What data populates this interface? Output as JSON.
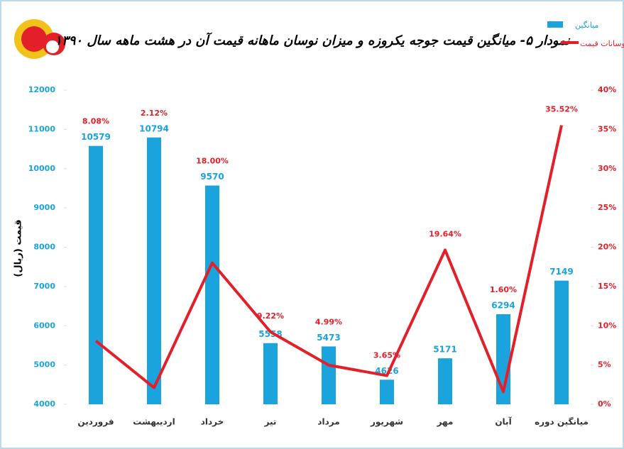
{
  "chart_data": {
    "type": "bar-line",
    "title": "نمودار ۵- میانگین قیمت جوجه یکروزه و میزان نوسان ماهانه قیمت آن در هشت ماهه سال ۱۳۹۰",
    "ylabel": "قیمت (ریال)",
    "categories": [
      "فروردین",
      "اردیبهشت",
      "خرداد",
      "تیر",
      "مرداد",
      "شهریور",
      "مهر",
      "آبان",
      "میانگین دوره"
    ],
    "series": [
      {
        "name": "میانگین",
        "type": "bar",
        "color": "#1aa3dc",
        "values": [
          10579,
          10794,
          9570,
          5558,
          5473,
          4626,
          5171,
          6294,
          7149
        ]
      },
      {
        "name": "نوسانات قیمت",
        "type": "line",
        "axis": "y2",
        "color": "#e3202a",
        "values": [
          8.08,
          2.12,
          18.0,
          9.22,
          4.99,
          3.65,
          19.64,
          1.6,
          35.52
        ],
        "value_labels": [
          "8.08%",
          "2.12%",
          "18.00%",
          "9.22%",
          "4.99%",
          "3.65%",
          "19.64%",
          "1.60%",
          "35.52%"
        ]
      }
    ],
    "ylim": [
      4000,
      12000
    ],
    "yticks": [
      4000,
      5000,
      6000,
      7000,
      8000,
      9000,
      10000,
      11000,
      12000
    ],
    "y2lim": [
      0,
      40
    ],
    "y2ticks": [
      {
        "value": 0,
        "label": "0%"
      },
      {
        "value": 5,
        "label": "5%"
      },
      {
        "value": 10,
        "label": "10%"
      },
      {
        "value": 15,
        "label": "15%"
      },
      {
        "value": 20,
        "label": "20%"
      },
      {
        "value": 25,
        "label": "25%"
      },
      {
        "value": 30,
        "label": "30%"
      },
      {
        "value": 35,
        "label": "35%"
      },
      {
        "value": 40,
        "label": "40%"
      }
    ],
    "grid": false,
    "legend": "top-right"
  }
}
